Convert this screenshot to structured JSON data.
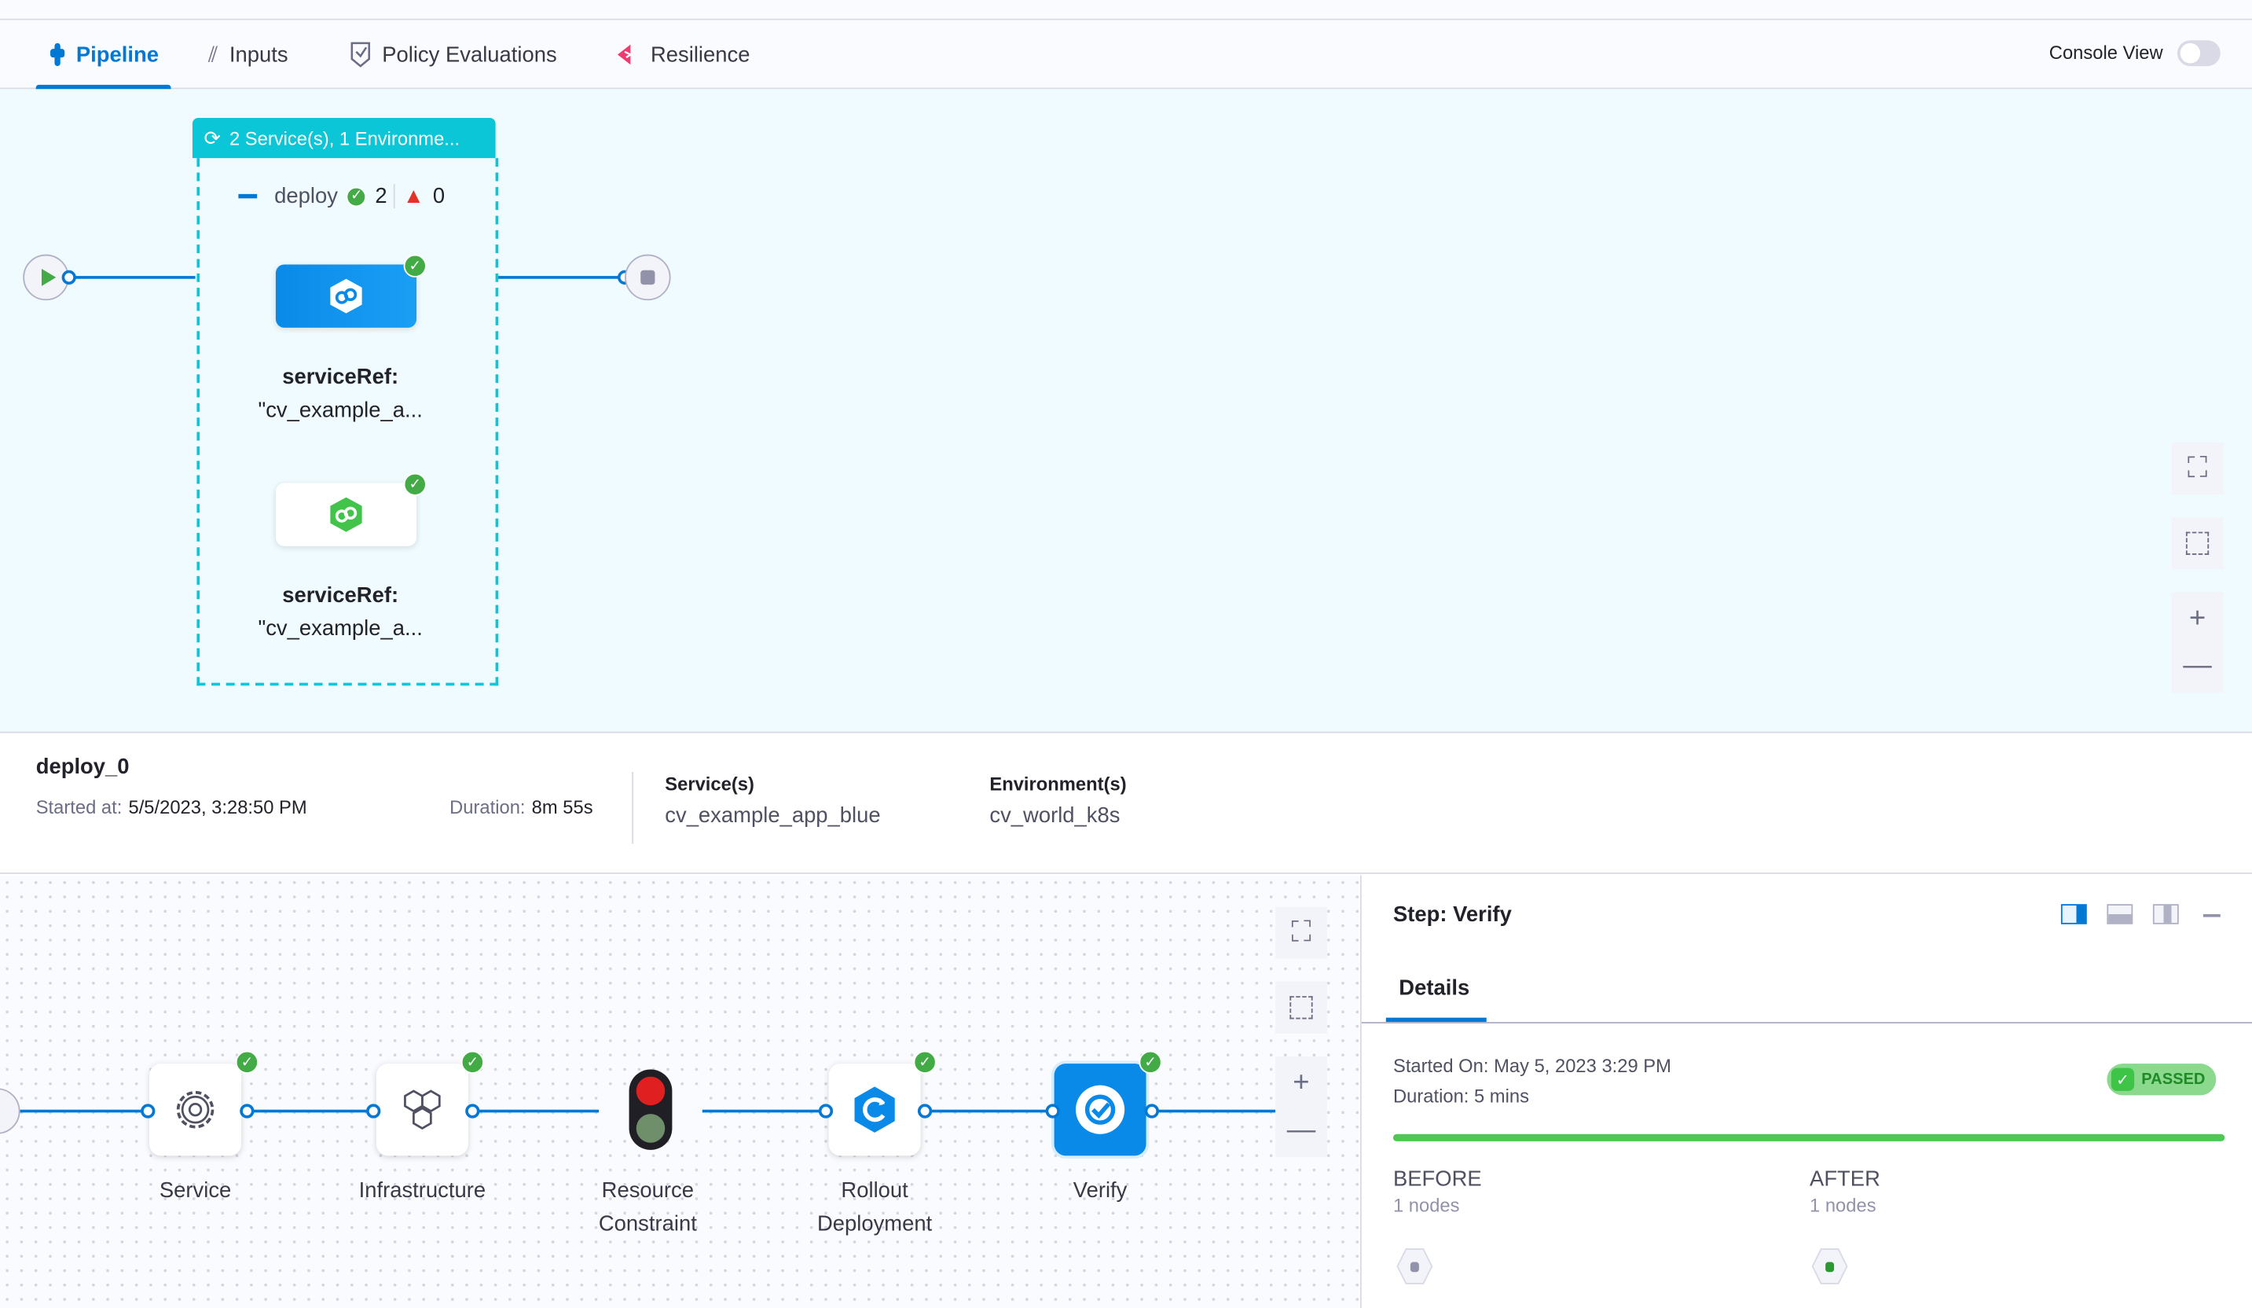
{
  "tabs": [
    {
      "label": "Pipeline",
      "icon": "pipeline-icon",
      "active": true
    },
    {
      "label": "Inputs",
      "icon": "inputs-icon"
    },
    {
      "label": "Policy Evaluations",
      "icon": "shield-check-icon"
    },
    {
      "label": "Resilience",
      "icon": "resilience-icon"
    }
  ],
  "console_view": {
    "label": "Console View",
    "enabled": false
  },
  "stage": {
    "header": "2 Service(s), 1 Environme...",
    "group_name": "deploy",
    "success_count": "2",
    "failed_count": "0",
    "services": [
      {
        "label_key": "serviceRef:",
        "label_value": "\"cv_example_a..."
      },
      {
        "label_key": "serviceRef:",
        "label_value": "\"cv_example_a..."
      }
    ]
  },
  "info": {
    "title": "deploy_0",
    "started_label": "Started at:",
    "started_value": "5/5/2023, 3:28:50 PM",
    "duration_label": "Duration:",
    "duration_value": "8m 55s",
    "services_label": "Service(s)",
    "services_value": "cv_example_app_blue",
    "env_label": "Environment(s)",
    "env_value": "cv_world_k8s"
  },
  "steps": [
    {
      "label": "Service",
      "status": "success"
    },
    {
      "label": "Infrastructure",
      "status": "success"
    },
    {
      "label": "Resource Constraint",
      "status": "none"
    },
    {
      "label": "Rollout Deployment",
      "status": "success"
    },
    {
      "label": "Verify",
      "status": "success",
      "selected": true
    }
  ],
  "panel": {
    "title": "Step: Verify",
    "tab": "Details",
    "started_on": "Started On: May 5, 2023 3:29 PM",
    "duration": "Duration: 5 mins",
    "status": "PASSED",
    "progress_percent": 100,
    "before_label": "BEFORE",
    "before_nodes": "1 nodes",
    "after_label": "AFTER",
    "after_nodes": "1 nodes"
  },
  "colors": {
    "accent": "#0278d5",
    "stage": "#0bc6d7",
    "success": "#42ab45",
    "canvas": "#f0fbff",
    "verify": "#0a8ae8"
  }
}
